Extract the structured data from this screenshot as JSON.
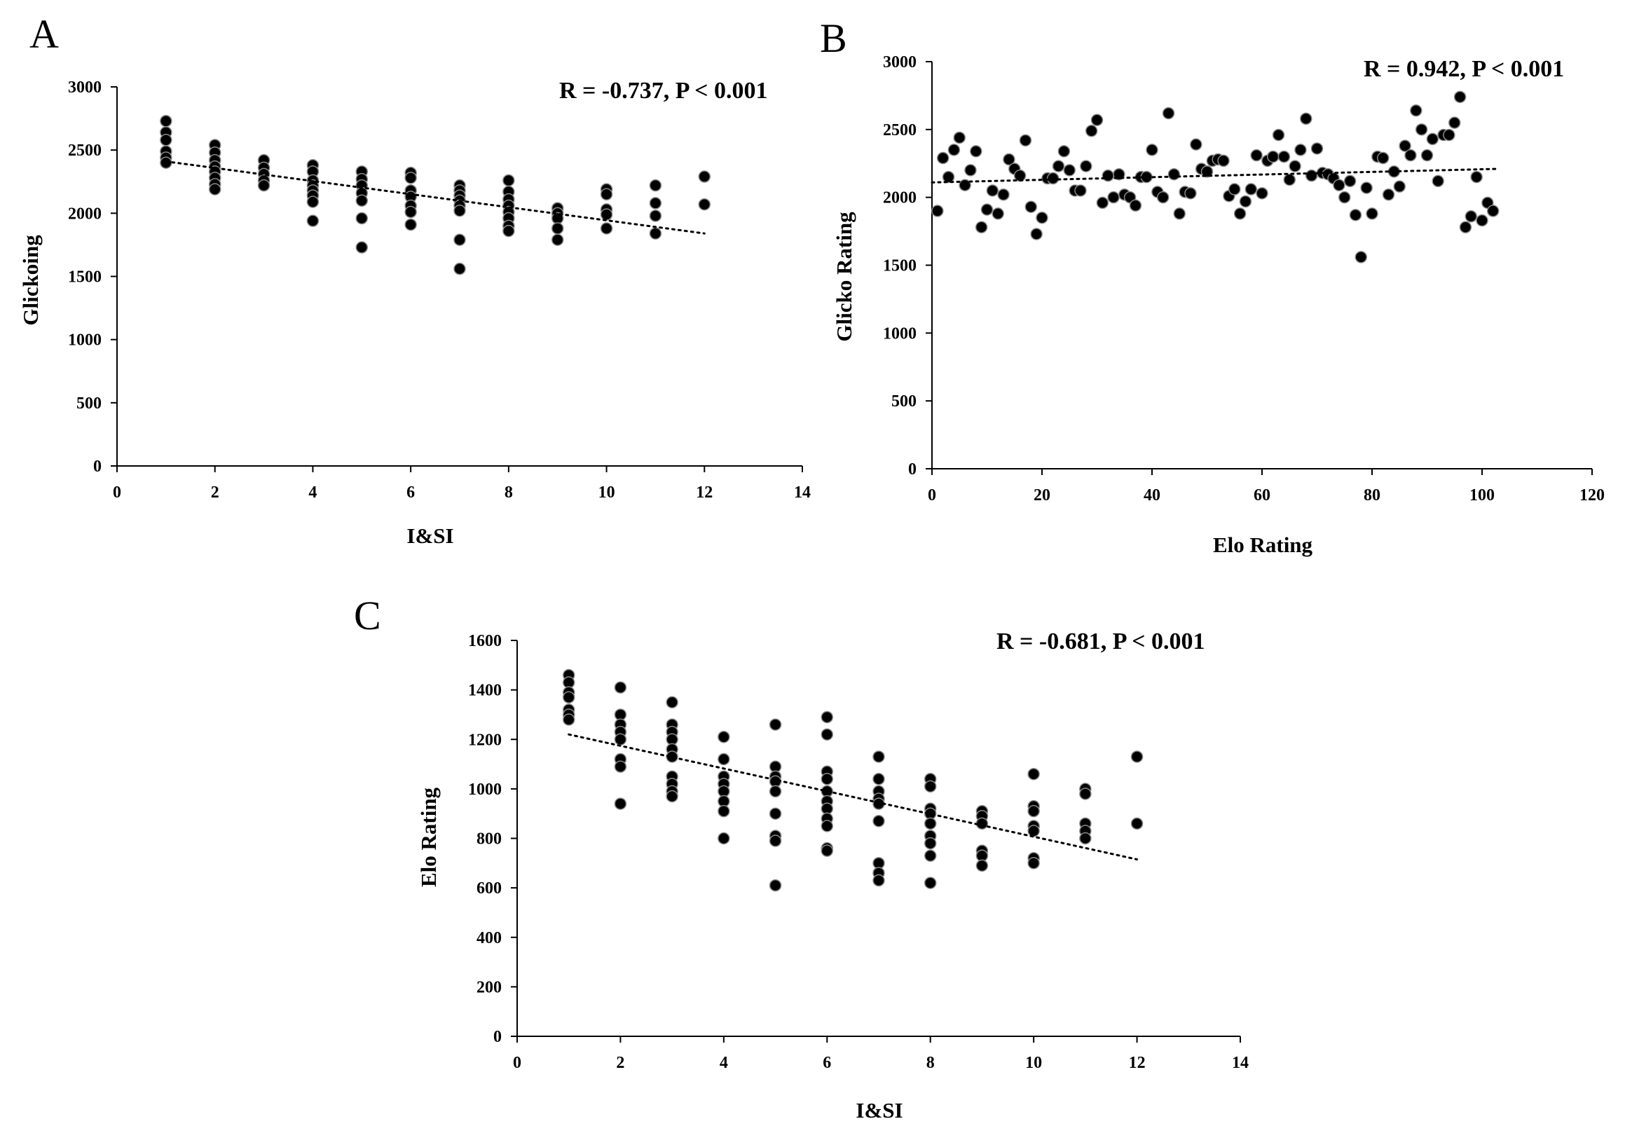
{
  "chart_data": [
    {
      "id": "A",
      "type": "scatter",
      "panel_label": "A",
      "title": "",
      "xlabel": "I&SI",
      "ylabel": "Glickoing",
      "annotation": "R = -0.737,  P < 0.001",
      "xlim": [
        0,
        14
      ],
      "ylim": [
        0,
        3000
      ],
      "xticks": [
        0,
        2,
        4,
        6,
        8,
        10,
        12,
        14
      ],
      "yticks": [
        0,
        500,
        1000,
        1500,
        2000,
        2500,
        3000
      ],
      "grid": false,
      "trendline": {
        "x": [
          1,
          12
        ],
        "y": [
          2410,
          1840
        ]
      },
      "points": [
        [
          1,
          2730
        ],
        [
          1,
          2640
        ],
        [
          1,
          2580
        ],
        [
          1,
          2490
        ],
        [
          1,
          2440
        ],
        [
          1,
          2400
        ],
        [
          2,
          2540
        ],
        [
          2,
          2480
        ],
        [
          2,
          2420
        ],
        [
          2,
          2370
        ],
        [
          2,
          2330
        ],
        [
          2,
          2280
        ],
        [
          2,
          2230
        ],
        [
          2,
          2190
        ],
        [
          3,
          2420
        ],
        [
          3,
          2360
        ],
        [
          3,
          2310
        ],
        [
          3,
          2260
        ],
        [
          3,
          2220
        ],
        [
          4,
          2380
        ],
        [
          4,
          2330
        ],
        [
          4,
          2260
        ],
        [
          4,
          2220
        ],
        [
          4,
          2180
        ],
        [
          4,
          2140
        ],
        [
          4,
          2090
        ],
        [
          4,
          1940
        ],
        [
          5,
          2330
        ],
        [
          5,
          2270
        ],
        [
          5,
          2220
        ],
        [
          5,
          2160
        ],
        [
          5,
          2100
        ],
        [
          5,
          1960
        ],
        [
          5,
          1730
        ],
        [
          6,
          2320
        ],
        [
          6,
          2280
        ],
        [
          6,
          2180
        ],
        [
          6,
          2130
        ],
        [
          6,
          2060
        ],
        [
          6,
          2010
        ],
        [
          6,
          1910
        ],
        [
          7,
          2220
        ],
        [
          7,
          2180
        ],
        [
          7,
          2140
        ],
        [
          7,
          2100
        ],
        [
          7,
          2060
        ],
        [
          7,
          2020
        ],
        [
          7,
          1790
        ],
        [
          7,
          1560
        ],
        [
          8,
          2260
        ],
        [
          8,
          2170
        ],
        [
          8,
          2110
        ],
        [
          8,
          2060
        ],
        [
          8,
          2010
        ],
        [
          8,
          1960
        ],
        [
          8,
          1900
        ],
        [
          8,
          1860
        ],
        [
          9,
          2040
        ],
        [
          9,
          2000
        ],
        [
          9,
          1960
        ],
        [
          9,
          1880
        ],
        [
          9,
          1790
        ],
        [
          10,
          2190
        ],
        [
          10,
          2150
        ],
        [
          10,
          2030
        ],
        [
          10,
          1990
        ],
        [
          10,
          1880
        ],
        [
          11,
          2220
        ],
        [
          11,
          2080
        ],
        [
          11,
          1980
        ],
        [
          11,
          1840
        ],
        [
          12,
          2290
        ],
        [
          12,
          2070
        ]
      ]
    },
    {
      "id": "B",
      "type": "scatter",
      "panel_label": "B",
      "title": "",
      "xlabel": "Elo Rating",
      "ylabel": "Glicko Rating",
      "annotation": "R = 0.942,  P < 0.001",
      "xlim": [
        0,
        120
      ],
      "ylim": [
        0,
        3000
      ],
      "xticks": [
        0,
        20,
        40,
        60,
        80,
        100,
        120
      ],
      "yticks": [
        0,
        500,
        1000,
        1500,
        2000,
        2500,
        3000
      ],
      "grid": false,
      "trendline": {
        "x": [
          0,
          103
        ],
        "y": [
          2110,
          2210
        ]
      },
      "points": [
        [
          1,
          1900
        ],
        [
          2,
          2290
        ],
        [
          3,
          2150
        ],
        [
          4,
          2350
        ],
        [
          5,
          2440
        ],
        [
          6,
          2090
        ],
        [
          7,
          2200
        ],
        [
          8,
          2340
        ],
        [
          9,
          1780
        ],
        [
          10,
          1910
        ],
        [
          11,
          2050
        ],
        [
          12,
          1880
        ],
        [
          13,
          2020
        ],
        [
          14,
          2280
        ],
        [
          15,
          2210
        ],
        [
          16,
          2160
        ],
        [
          17,
          2420
        ],
        [
          18,
          1930
        ],
        [
          19,
          1730
        ],
        [
          20,
          1850
        ],
        [
          21,
          2140
        ],
        [
          22,
          2140
        ],
        [
          23,
          2230
        ],
        [
          24,
          2340
        ],
        [
          25,
          2200
        ],
        [
          26,
          2050
        ],
        [
          27,
          2050
        ],
        [
          28,
          2230
        ],
        [
          29,
          2490
        ],
        [
          30,
          2570
        ],
        [
          31,
          1960
        ],
        [
          32,
          2160
        ],
        [
          33,
          2000
        ],
        [
          34,
          2170
        ],
        [
          35,
          2020
        ],
        [
          36,
          2000
        ],
        [
          37,
          1940
        ],
        [
          38,
          2150
        ],
        [
          39,
          2150
        ],
        [
          40,
          2350
        ],
        [
          41,
          2040
        ],
        [
          42,
          2000
        ],
        [
          43,
          2620
        ],
        [
          44,
          2170
        ],
        [
          45,
          1880
        ],
        [
          46,
          2040
        ],
        [
          47,
          2030
        ],
        [
          48,
          2390
        ],
        [
          49,
          2210
        ],
        [
          50,
          2190
        ],
        [
          51,
          2270
        ],
        [
          52,
          2280
        ],
        [
          53,
          2270
        ],
        [
          54,
          2010
        ],
        [
          55,
          2060
        ],
        [
          56,
          1880
        ],
        [
          57,
          1970
        ],
        [
          58,
          2060
        ],
        [
          59,
          2310
        ],
        [
          60,
          2030
        ],
        [
          61,
          2270
        ],
        [
          62,
          2300
        ],
        [
          63,
          2460
        ],
        [
          64,
          2300
        ],
        [
          65,
          2130
        ],
        [
          66,
          2230
        ],
        [
          67,
          2350
        ],
        [
          68,
          2580
        ],
        [
          69,
          2160
        ],
        [
          70,
          2360
        ],
        [
          71,
          2180
        ],
        [
          72,
          2170
        ],
        [
          73,
          2140
        ],
        [
          74,
          2090
        ],
        [
          75,
          2000
        ],
        [
          76,
          2120
        ],
        [
          77,
          1870
        ],
        [
          78,
          1560
        ],
        [
          79,
          2070
        ],
        [
          80,
          1880
        ],
        [
          81,
          2300
        ],
        [
          82,
          2290
        ],
        [
          83,
          2020
        ],
        [
          84,
          2190
        ],
        [
          85,
          2080
        ],
        [
          86,
          2380
        ],
        [
          87,
          2310
        ],
        [
          88,
          2640
        ],
        [
          89,
          2500
        ],
        [
          90,
          2310
        ],
        [
          91,
          2430
        ],
        [
          92,
          2120
        ],
        [
          93,
          2460
        ],
        [
          94,
          2460
        ],
        [
          95,
          2550
        ],
        [
          96,
          2740
        ],
        [
          97,
          1780
        ],
        [
          98,
          1860
        ],
        [
          99,
          2150
        ],
        [
          100,
          1830
        ],
        [
          101,
          1960
        ],
        [
          102,
          1900
        ]
      ]
    },
    {
      "id": "C",
      "type": "scatter",
      "panel_label": "C",
      "title": "",
      "xlabel": "I&SI",
      "ylabel": "Elo Rating",
      "annotation": "R = -0.681,  P < 0.001",
      "xlim": [
        0,
        14
      ],
      "ylim": [
        0,
        1600
      ],
      "xticks": [
        0,
        2,
        4,
        6,
        8,
        10,
        12,
        14
      ],
      "yticks": [
        0,
        200,
        400,
        600,
        800,
        1000,
        1200,
        1400,
        1600
      ],
      "grid": false,
      "trendline": {
        "x": [
          1,
          12
        ],
        "y": [
          1220,
          715
        ]
      },
      "points": [
        [
          1,
          1460
        ],
        [
          1,
          1430
        ],
        [
          1,
          1390
        ],
        [
          1,
          1370
        ],
        [
          1,
          1320
        ],
        [
          1,
          1300
        ],
        [
          1,
          1280
        ],
        [
          2,
          1410
        ],
        [
          2,
          1300
        ],
        [
          2,
          1260
        ],
        [
          2,
          1230
        ],
        [
          2,
          1200
        ],
        [
          2,
          1120
        ],
        [
          2,
          1090
        ],
        [
          2,
          940
        ],
        [
          3,
          1350
        ],
        [
          3,
          1260
        ],
        [
          3,
          1230
        ],
        [
          3,
          1200
        ],
        [
          3,
          1160
        ],
        [
          3,
          1130
        ],
        [
          3,
          1050
        ],
        [
          3,
          1020
        ],
        [
          3,
          990
        ],
        [
          3,
          970
        ],
        [
          4,
          1210
        ],
        [
          4,
          1120
        ],
        [
          4,
          1050
        ],
        [
          4,
          1020
        ],
        [
          4,
          990
        ],
        [
          4,
          950
        ],
        [
          4,
          910
        ],
        [
          4,
          800
        ],
        [
          5,
          1260
        ],
        [
          5,
          1090
        ],
        [
          5,
          1050
        ],
        [
          5,
          1030
        ],
        [
          5,
          990
        ],
        [
          5,
          900
        ],
        [
          5,
          810
        ],
        [
          5,
          790
        ],
        [
          5,
          610
        ],
        [
          6,
          1290
        ],
        [
          6,
          1220
        ],
        [
          6,
          1070
        ],
        [
          6,
          1040
        ],
        [
          6,
          990
        ],
        [
          6,
          950
        ],
        [
          6,
          920
        ],
        [
          6,
          880
        ],
        [
          6,
          850
        ],
        [
          6,
          760
        ],
        [
          6,
          750
        ],
        [
          7,
          1130
        ],
        [
          7,
          1040
        ],
        [
          7,
          990
        ],
        [
          7,
          960
        ],
        [
          7,
          940
        ],
        [
          7,
          870
        ],
        [
          7,
          700
        ],
        [
          7,
          660
        ],
        [
          7,
          630
        ],
        [
          8,
          1040
        ],
        [
          8,
          1010
        ],
        [
          8,
          920
        ],
        [
          8,
          900
        ],
        [
          8,
          860
        ],
        [
          8,
          810
        ],
        [
          8,
          780
        ],
        [
          8,
          730
        ],
        [
          8,
          620
        ],
        [
          9,
          910
        ],
        [
          9,
          890
        ],
        [
          9,
          860
        ],
        [
          9,
          750
        ],
        [
          9,
          730
        ],
        [
          9,
          690
        ],
        [
          10,
          1060
        ],
        [
          10,
          930
        ],
        [
          10,
          910
        ],
        [
          10,
          850
        ],
        [
          10,
          830
        ],
        [
          10,
          720
        ],
        [
          10,
          700
        ],
        [
          11,
          1000
        ],
        [
          11,
          980
        ],
        [
          11,
          860
        ],
        [
          11,
          830
        ],
        [
          11,
          800
        ],
        [
          12,
          1130
        ],
        [
          12,
          860
        ]
      ]
    }
  ]
}
